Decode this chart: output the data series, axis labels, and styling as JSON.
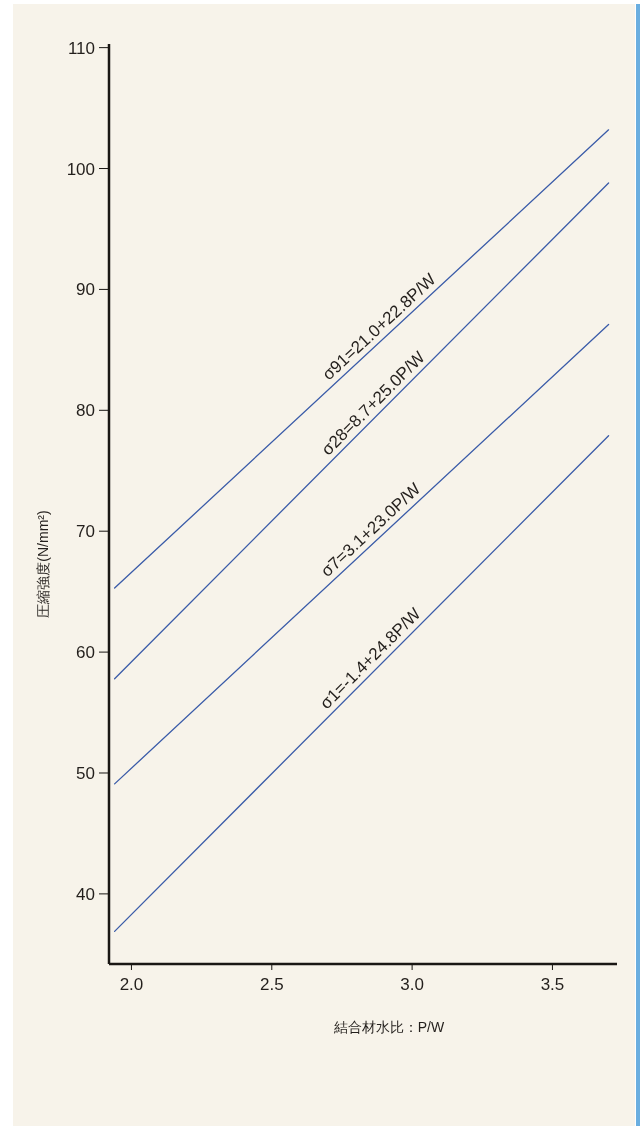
{
  "chart_data": {
    "type": "line",
    "xlabel": "結合材水比：P/W",
    "ylabel": "圧縮強度(N/mm²)",
    "xlim": [
      1.92,
      3.73
    ],
    "ylim": [
      34.2,
      110.3
    ],
    "xticks": [
      {
        "value": 2,
        "label": "2.0"
      },
      {
        "value": 2.5,
        "label": "2.5"
      },
      {
        "value": 3,
        "label": "3.0"
      },
      {
        "value": 3.5,
        "label": "3.5"
      }
    ],
    "yticks": [
      40,
      50,
      60,
      70,
      80,
      90,
      100,
      110
    ],
    "line_style": "solid",
    "x": [
      1.94,
      3.7
    ],
    "series": [
      {
        "color": "#3a5ba8",
        "values": [
          65.3,
          103.2
        ]
      },
      {
        "color": "#3a5ba8",
        "values": [
          57.8,
          98.8
        ]
      },
      {
        "color": "#3a5ba8",
        "values": [
          49.1,
          87.1
        ]
      },
      {
        "color": "#3a5ba8",
        "values": [
          36.9,
          77.9
        ]
      }
    ],
    "annotations": [
      {
        "text": "σ91=21.0+22.8P/W",
        "x": 2.91,
        "y": 86.2
      },
      {
        "text": "σ28=8.7+25.0P/W",
        "x": 2.89,
        "y": 79.9
      },
      {
        "text": "σ7=3.1+23.0P/W",
        "x": 2.88,
        "y": 69.4
      },
      {
        "text": "σ1=-1.4+24.8P/W",
        "x": 2.88,
        "y": 58.8
      }
    ]
  }
}
